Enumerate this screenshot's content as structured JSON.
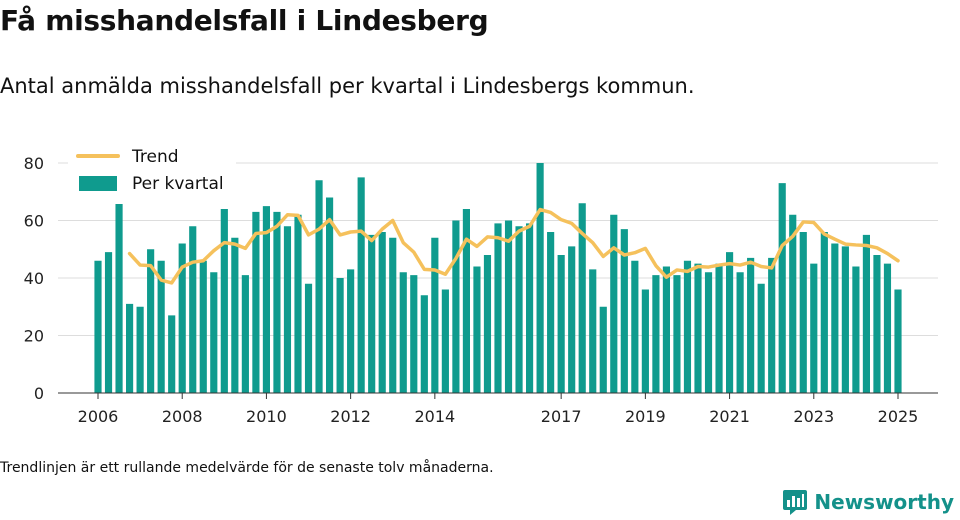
{
  "page": {
    "title": "Få misshandelsfall i Lindesberg",
    "subtitle": "Antal anmälda misshandelsfall per kvartal i Lindesbergs kommun.",
    "footnote": "Trendlinjen är ett rullande medelvärde för de senaste tolv månaderna.",
    "brand": "Newsworthy",
    "brand_icon": "bar-chart-speech-icon"
  },
  "colors": {
    "bar": "#0f9b8e",
    "trend": "#f5c15c",
    "grid": "#dddddd",
    "axis": "#333333",
    "brand": "#14918a"
  },
  "chart_data": {
    "type": "bar",
    "legend_position": "top-left",
    "grid": true,
    "ylim": [
      0,
      80
    ],
    "yticks": [
      0,
      20,
      40,
      60,
      80
    ],
    "xlim": [
      2005.05,
      2025.95
    ],
    "xticks": [
      2006,
      2008,
      2010,
      2012,
      2014,
      2017,
      2019,
      2021,
      2023,
      2025
    ],
    "xtick_labels": [
      "2006",
      "2008",
      "2010",
      "2012",
      "2014",
      "2017",
      "2019",
      "2021",
      "2023",
      "2025"
    ],
    "series": [
      {
        "name": "Per kvartal",
        "type": "bar",
        "start": 2006.0,
        "step": 0.25,
        "values": [
          46,
          49,
          66,
          31,
          30,
          50,
          46,
          27,
          52,
          58,
          46,
          42,
          64,
          54,
          41,
          63,
          65,
          63,
          58,
          62,
          38,
          74,
          68,
          40,
          43,
          75,
          55,
          56,
          54,
          42,
          41,
          34,
          54,
          36,
          60,
          64,
          44,
          48,
          59,
          60,
          58,
          59,
          80,
          56,
          48,
          51,
          66,
          43,
          30,
          62,
          57,
          46,
          36,
          41,
          44,
          41,
          46,
          45,
          42,
          45,
          49,
          42,
          47,
          38,
          47,
          73,
          62,
          56,
          45,
          56,
          52,
          51,
          44,
          55,
          48,
          45,
          36
        ]
      },
      {
        "name": "Trend",
        "type": "line",
        "x": [
          2006.75,
          2007.0,
          2007.25,
          2007.5,
          2007.75,
          2008.0,
          2008.25,
          2008.5,
          2008.75,
          2009.0,
          2009.25,
          2009.5,
          2009.75,
          2010.0,
          2010.25,
          2010.5,
          2010.75,
          2011.0,
          2011.25,
          2011.5,
          2011.75,
          2012.0,
          2012.25,
          2012.5,
          2012.75,
          2013.0,
          2013.25,
          2013.5,
          2013.75,
          2014.0,
          2014.25,
          2014.5,
          2014.75,
          2015.0,
          2015.25,
          2015.5,
          2015.75,
          2016.0,
          2016.25,
          2016.5,
          2016.75,
          2017.0,
          2017.25,
          2017.5,
          2017.75,
          2018.0,
          2018.25,
          2018.5,
          2018.75,
          2019.0,
          2019.25,
          2019.5,
          2019.75,
          2020.0,
          2020.25,
          2020.5,
          2020.75,
          2021.0,
          2021.25,
          2021.5,
          2021.75,
          2022.0,
          2022.25,
          2022.5,
          2022.75,
          2023.0,
          2023.25,
          2023.5,
          2023.75,
          2024.0,
          2024.25,
          2024.5,
          2024.75,
          2025.0
        ],
        "values": [
          48.5,
          44.5,
          44.3,
          39.3,
          38.3,
          43.8,
          45.5,
          46.0,
          49.5,
          52.3,
          51.8,
          50.3,
          55.5,
          55.8,
          58.0,
          62.0,
          61.8,
          55.0,
          57.0,
          60.3,
          55.0,
          56.0,
          56.3,
          53.0,
          57.0,
          60.0,
          52.3,
          49.0,
          43.0,
          42.8,
          41.3,
          46.8,
          53.5,
          51.0,
          54.3,
          54.0,
          52.8,
          56.3,
          58.0,
          63.8,
          62.8,
          60.3,
          59.0,
          55.5,
          52.3,
          47.5,
          50.5,
          48.0,
          48.8,
          50.3,
          44.3,
          40.3,
          42.8,
          42.3,
          44.0,
          43.8,
          44.5,
          45.0,
          44.5,
          45.5,
          44.0,
          43.5,
          51.3,
          54.5,
          59.5,
          59.3,
          55.3,
          53.5,
          51.8,
          51.5,
          51.3,
          50.5,
          48.5,
          46.0
        ]
      }
    ]
  }
}
